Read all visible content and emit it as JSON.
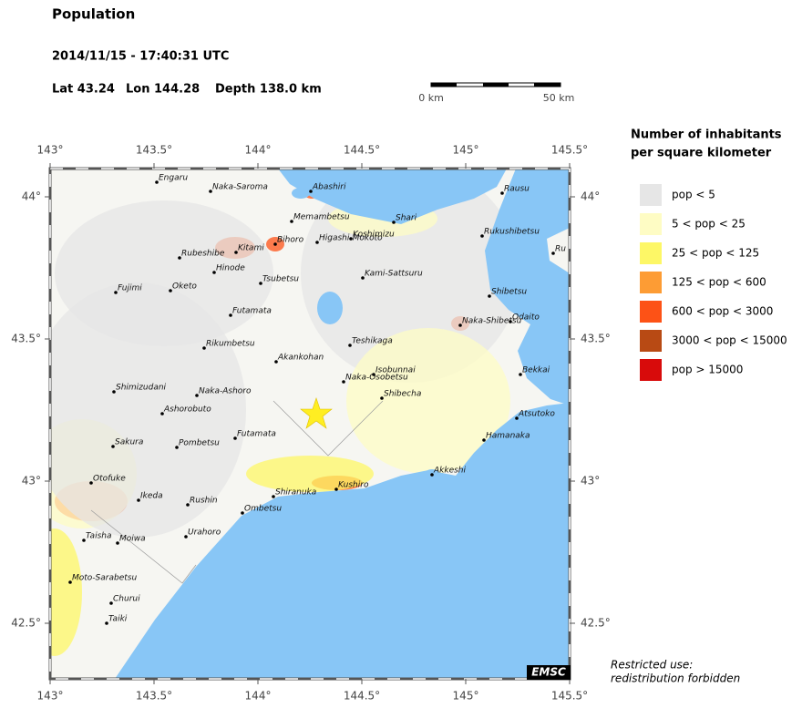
{
  "header": {
    "title": "Population",
    "datetime": "2014/11/15 - 17:40:31 UTC",
    "lat": "Lat 43.24",
    "lon": "Lon 144.28",
    "depth": "Depth 138.0 km"
  },
  "scale": {
    "start": "0 km",
    "end": "50 km"
  },
  "map": {
    "xticks": [
      {
        "value": 143,
        "label": "143°"
      },
      {
        "value": 143.5,
        "label": "143.5°"
      },
      {
        "value": 144,
        "label": "144°"
      },
      {
        "value": 144.5,
        "label": "144.5°"
      },
      {
        "value": 145,
        "label": "145°"
      },
      {
        "value": 145.5,
        "label": "145.5°"
      }
    ],
    "yticks": [
      {
        "value": 44,
        "label": "44°"
      },
      {
        "value": 43.5,
        "label": "43.5°"
      },
      {
        "value": 43,
        "label": "43°"
      },
      {
        "value": 42.5,
        "label": "42.5°"
      }
    ],
    "towns": [
      "Engaru",
      "Naka-Saroma",
      "Abashiri",
      "Rausu",
      "Memambetsu",
      "Shari",
      "Kitami",
      "Rubeshibe",
      "Bihoro",
      "Higashi-Mokoto",
      "Koshimizu",
      "Rukushibetsu",
      "Ru",
      "Hinode",
      "Tsubetsu",
      "Kami-Sattsuru",
      "Fujimi",
      "Oketo",
      "Shibetsu",
      "Futamata",
      "Naka-Shibetsu",
      "Odaito",
      "Teshikaga",
      "Rikumbetsu",
      "Akankohan",
      "Bekkai",
      "Isobunnai",
      "Naka-Osobetsu",
      "Shimizudani",
      "Naka-Ashoro",
      "Shibecha",
      "Ashorobuto",
      "Atsutoko",
      "Futamata",
      "Hamanaka",
      "Sakura",
      "Pombetsu",
      "Akkeshi",
      "Kushiro",
      "Otofuke",
      "Ikeda",
      "Shiranuka",
      "Rushin",
      "Ombetsu",
      "Urahoro",
      "Taisha",
      "Moiwa",
      "Moto-Sarabetsu",
      "Churui",
      "Taiki"
    ],
    "logo": "EMSC"
  },
  "legend": {
    "title": [
      "Number of inhabitants",
      "per square kilometer"
    ],
    "items": [
      {
        "label": "pop < 5",
        "color": "#e6e6e6"
      },
      {
        "label": "5 < pop < 25",
        "color": "#fefcc4"
      },
      {
        "label": "25 < pop < 125",
        "color": "#fdf766"
      },
      {
        "label": "125 < pop < 600",
        "color": "#fd9c34"
      },
      {
        "label": "600 < pop < 3000",
        "color": "#fd5216"
      },
      {
        "label": "3000 < pop < 15000",
        "color": "#b84a14"
      },
      {
        "label": "pop > 15000",
        "color": "#d80b0b"
      }
    ]
  },
  "footer": [
    "Restricted use:",
    "redistribution forbidden"
  ]
}
